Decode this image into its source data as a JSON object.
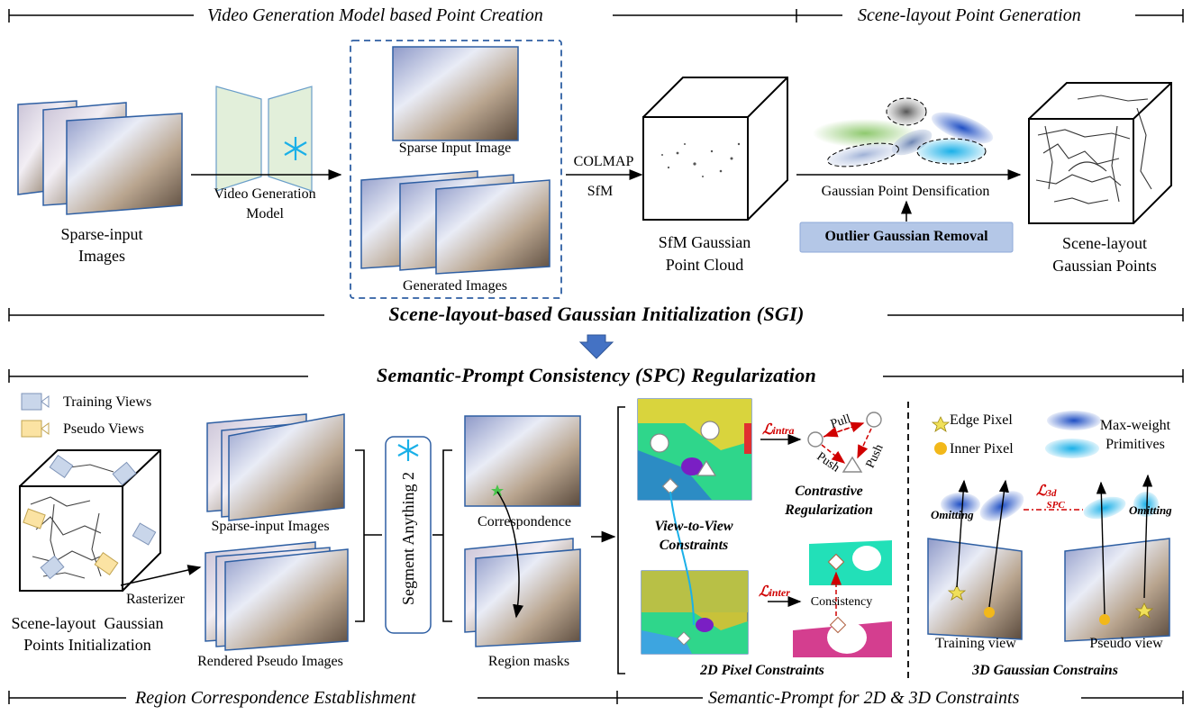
{
  "sections": {
    "top_left": "Video Generation Model based Point Creation",
    "top_right": "Scene-layout Point Generation",
    "sgi": "Scene-layout-based Gaussian Initialization (SGI)",
    "spc": "Semantic-Prompt Consistency (SPC) Regularization",
    "bottom_left": "Region Correspondence Establishment",
    "bottom_right": "Semantic-Prompt for 2D & 3D Constraints"
  },
  "top": {
    "sparse_input": "Sparse-input\nImages",
    "video_model": "Video Generation\nModel",
    "sparse_input_image": "Sparse Input Image",
    "generated_images": "Generated Images",
    "colmap": "COLMAP",
    "sfm": "SfM",
    "sfm_cloud": "SfM Gaussian\nPoint Cloud",
    "densification": "Gaussian Point Densification",
    "outlier": "Outlier Gaussian Removal",
    "scene_layout_points": "Scene-layout\nGaussian Points"
  },
  "bottom_left": {
    "legend_training": "Training  Views",
    "legend_pseudo": "Pseudo Views",
    "init": "Scene-layout  Gaussian\nPoints Initialization",
    "rasterizer": "Rasterizer",
    "sparse_images": "Sparse-input Images",
    "rendered_pseudo": "Rendered Pseudo Images",
    "sam": "Segment Anything 2",
    "correspondence": "Correspondence",
    "region_masks": "Region masks"
  },
  "middle": {
    "l_intra_base": "ℒ",
    "l_intra_sub": "intra",
    "l_inter_base": "ℒ",
    "l_inter_sub": "inter",
    "pull": "Pull",
    "push": "Push",
    "push2": "Push",
    "contrastive": "Contrastive\nRegularization",
    "view_to_view": "View-to-View\nConstraints",
    "consistency": "Consistency",
    "pixel_constraints": "2D Pixel Constraints"
  },
  "right": {
    "edge_pixel": "Edge Pixel",
    "inner_pixel": "Inner Pixel",
    "max_weight": "Max-weight\nPrimitives",
    "l_spc_base": "ℒ",
    "l_spc_sup": "3d",
    "l_spc_sub": "SPC",
    "omitting": "Omitting",
    "omitting2": "Omitting",
    "training_view": "Training  view",
    "pseudo_view": "Pseudo view",
    "gaussian_constraints": "3D Gaussian Constrains"
  },
  "colors": {
    "dashed_box": "#2e5fa3",
    "outlier_bg": "#b4c7e7",
    "red": "#d00000",
    "cyan": "#1ab0e8",
    "dark_blue": "#1f4fc4",
    "legend_training": "#c9d6ea",
    "legend_pseudo": "#fbe3a3"
  }
}
